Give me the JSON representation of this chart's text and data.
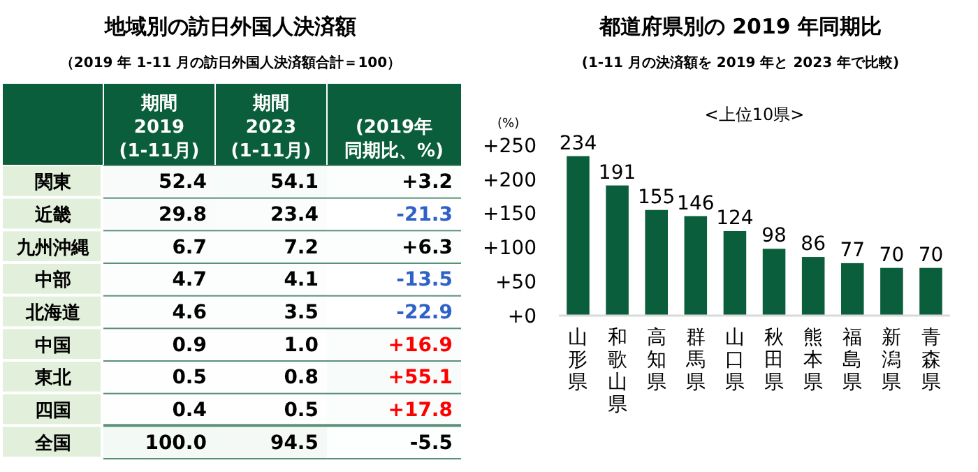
{
  "chart_data": [
    {
      "type": "heatmap",
      "title": "地域別の訪日外国人決済額",
      "subtitle": "（2019 年 1-11 月の訪日外国人決済額合計＝100）",
      "categories": [
        "期間\n2019\n(1-11月)",
        "期間\n2023\n(1-11月)",
        "(2019年同期比、%)"
      ],
      "y_categories": [
        "関東",
        "近畿",
        "九州沖縄",
        "中部",
        "北海道",
        "中国",
        "東北",
        "四国",
        "全国"
      ],
      "cells": [
        [
          52.4,
          54.1,
          3.2
        ],
        [
          29.8,
          23.4,
          -21.3
        ],
        [
          6.7,
          7.2,
          6.3
        ],
        [
          4.7,
          4.1,
          -13.5
        ],
        [
          4.6,
          3.5,
          -22.9
        ],
        [
          0.9,
          1.0,
          16.9
        ],
        [
          0.5,
          0.8,
          55.1
        ],
        [
          0.4,
          0.5,
          17.8
        ],
        [
          100.0,
          94.5,
          -5.5
        ]
      ],
      "cell_labels": [
        [
          "52.4",
          "54.1",
          "+3.2"
        ],
        [
          "29.8",
          "23.4",
          "-21.3"
        ],
        [
          "6.7",
          "7.2",
          "+6.3"
        ],
        [
          "4.7",
          "4.1",
          "-13.5"
        ],
        [
          "4.6",
          "3.5",
          "-22.9"
        ],
        [
          "0.9",
          "1.0",
          "+16.9"
        ],
        [
          "0.5",
          "0.8",
          "+55.1"
        ],
        [
          "0.4",
          "0.5",
          "+17.8"
        ],
        [
          "100.0",
          "94.5",
          "-5.5"
        ]
      ]
    },
    {
      "type": "bar",
      "title": "都道府県別の 2019 年同期比",
      "subtitle": "(1-11 月の決済額を 2019 年と 2023 年で比較)",
      "ylabel": "(%)",
      "annotations": [
        "<上位10県>"
      ],
      "categories": [
        "山形県",
        "和歌山県",
        "高知県",
        "群馬県",
        "山口県",
        "秋田県",
        "熊本県",
        "福島県",
        "新潟県",
        "青森県"
      ],
      "values": [
        234,
        191,
        155,
        146,
        124,
        98,
        86,
        77,
        70,
        70
      ],
      "color": "#0b5e3b",
      "ylim": [
        0,
        250
      ],
      "yticks": [
        {
          "value": 0,
          "label": "+0"
        },
        {
          "value": 50,
          "label": "+50"
        },
        {
          "value": 100,
          "label": "+100"
        },
        {
          "value": 150,
          "label": "+150"
        },
        {
          "value": 200,
          "label": "+200"
        },
        {
          "value": 250,
          "label": "+250"
        }
      ],
      "data_labels": true,
      "grid": false
    }
  ]
}
